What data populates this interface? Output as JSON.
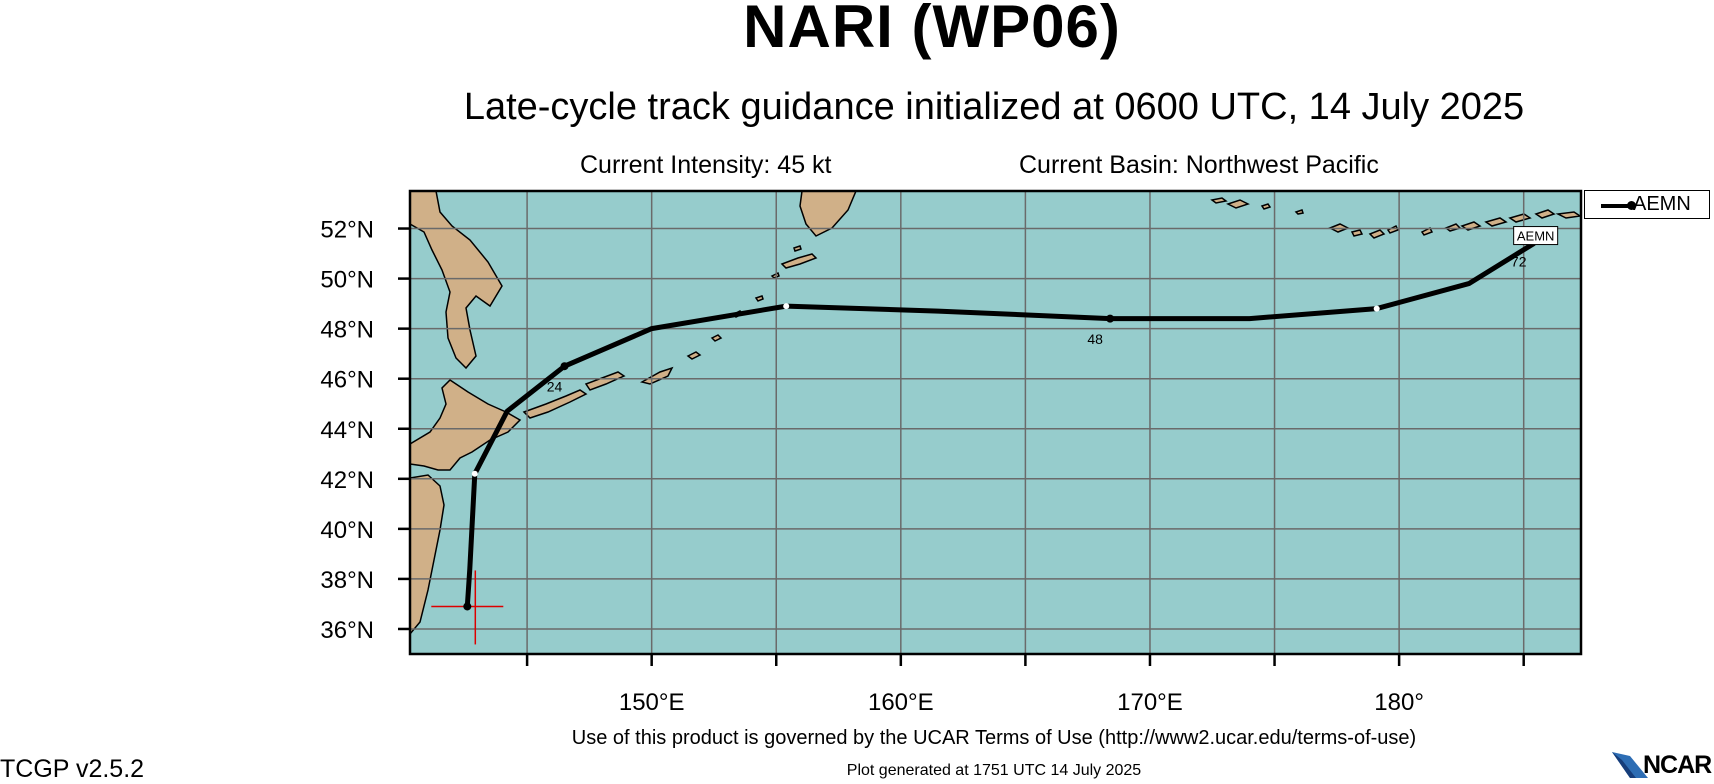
{
  "title": "NARI (WP06)",
  "subtitle": "Late-cycle track guidance initialized at 0600 UTC, 14 July 2025",
  "info": {
    "intensity": "Current Intensity: 45 kt",
    "basin": "Current Basin: Northwest Pacific"
  },
  "map": {
    "lon_range": [
      140.3,
      187.3
    ],
    "lat_range": [
      35.0,
      53.5
    ],
    "grid_lons": [
      145,
      150,
      155,
      160,
      165,
      170,
      175,
      180,
      185
    ],
    "grid_lats": [
      36,
      38,
      40,
      42,
      44,
      46,
      48,
      50,
      52
    ],
    "lon_tick_labels": [
      {
        "lon": 150,
        "label": "150°E"
      },
      {
        "lon": 160,
        "label": "160°E"
      },
      {
        "lon": 170,
        "label": "170°E"
      },
      {
        "lon": 180,
        "label": "180°"
      }
    ],
    "lat_tick_labels": [
      {
        "lat": 52,
        "label": "52°N"
      },
      {
        "lat": 50,
        "label": "50°N"
      },
      {
        "lat": 48,
        "label": "48°N"
      },
      {
        "lat": 46,
        "label": "46°N"
      },
      {
        "lat": 44,
        "label": "44°N"
      },
      {
        "lat": 42,
        "label": "42°N"
      },
      {
        "lat": 40,
        "label": "40°N"
      },
      {
        "lat": 38,
        "label": "38°N"
      },
      {
        "lat": 36,
        "label": "36°N"
      }
    ],
    "colors": {
      "ocean": "#96cccc",
      "land": "#d0b088",
      "grid": "#6a6a6a",
      "track": "#000000",
      "current_position": "#dd0000"
    },
    "current_position": {
      "lon": 142.6,
      "lat": 36.9
    }
  },
  "track": {
    "model": "AEMN",
    "points": [
      {
        "lon": 142.6,
        "lat": 36.9
      },
      {
        "lon": 142.7,
        "lat": 38.4
      },
      {
        "lon": 142.8,
        "lat": 40.3
      },
      {
        "lon": 142.9,
        "lat": 42.2
      },
      {
        "lon": 144.2,
        "lat": 44.7
      },
      {
        "lon": 146.5,
        "lat": 46.5
      },
      {
        "lon": 150.0,
        "lat": 48.0
      },
      {
        "lon": 155.4,
        "lat": 48.9
      },
      {
        "lon": 161.5,
        "lat": 48.7
      },
      {
        "lon": 168.4,
        "lat": 48.4
      },
      {
        "lon": 174.0,
        "lat": 48.4
      },
      {
        "lon": 179.1,
        "lat": 48.8
      },
      {
        "lon": 182.8,
        "lat": 49.8
      },
      {
        "lon": 185.4,
        "lat": 51.4
      }
    ],
    "marker_points": [
      {
        "lon": 142.9,
        "lat": 42.2,
        "style": "white"
      },
      {
        "lon": 146.5,
        "lat": 46.5,
        "style": "black"
      },
      {
        "lon": 155.4,
        "lat": 48.9,
        "style": "white"
      },
      {
        "lon": 168.4,
        "lat": 48.4,
        "style": "black"
      },
      {
        "lon": 179.1,
        "lat": 48.8,
        "style": "white"
      }
    ],
    "hour_labels": [
      {
        "text": "24",
        "lon": 146.1,
        "lat": 46.2
      },
      {
        "text": "48",
        "lon": 167.8,
        "lat": 48.1
      },
      {
        "text": "72",
        "lon": 184.8,
        "lat": 51.2
      }
    ],
    "end_label": {
      "text": "AEMN",
      "lon": 185.4,
      "lat": 51.4
    }
  },
  "legend": {
    "label": "AEMN"
  },
  "footer": {
    "terms": "Use of this product is governed by the UCAR Terms of Use (http://www2.ucar.edu/terms-of-use)",
    "version": "TCGP v2.5.2",
    "generated": "Plot generated at 1751 UTC   14 July 2025",
    "logo_text": "NCAR"
  }
}
